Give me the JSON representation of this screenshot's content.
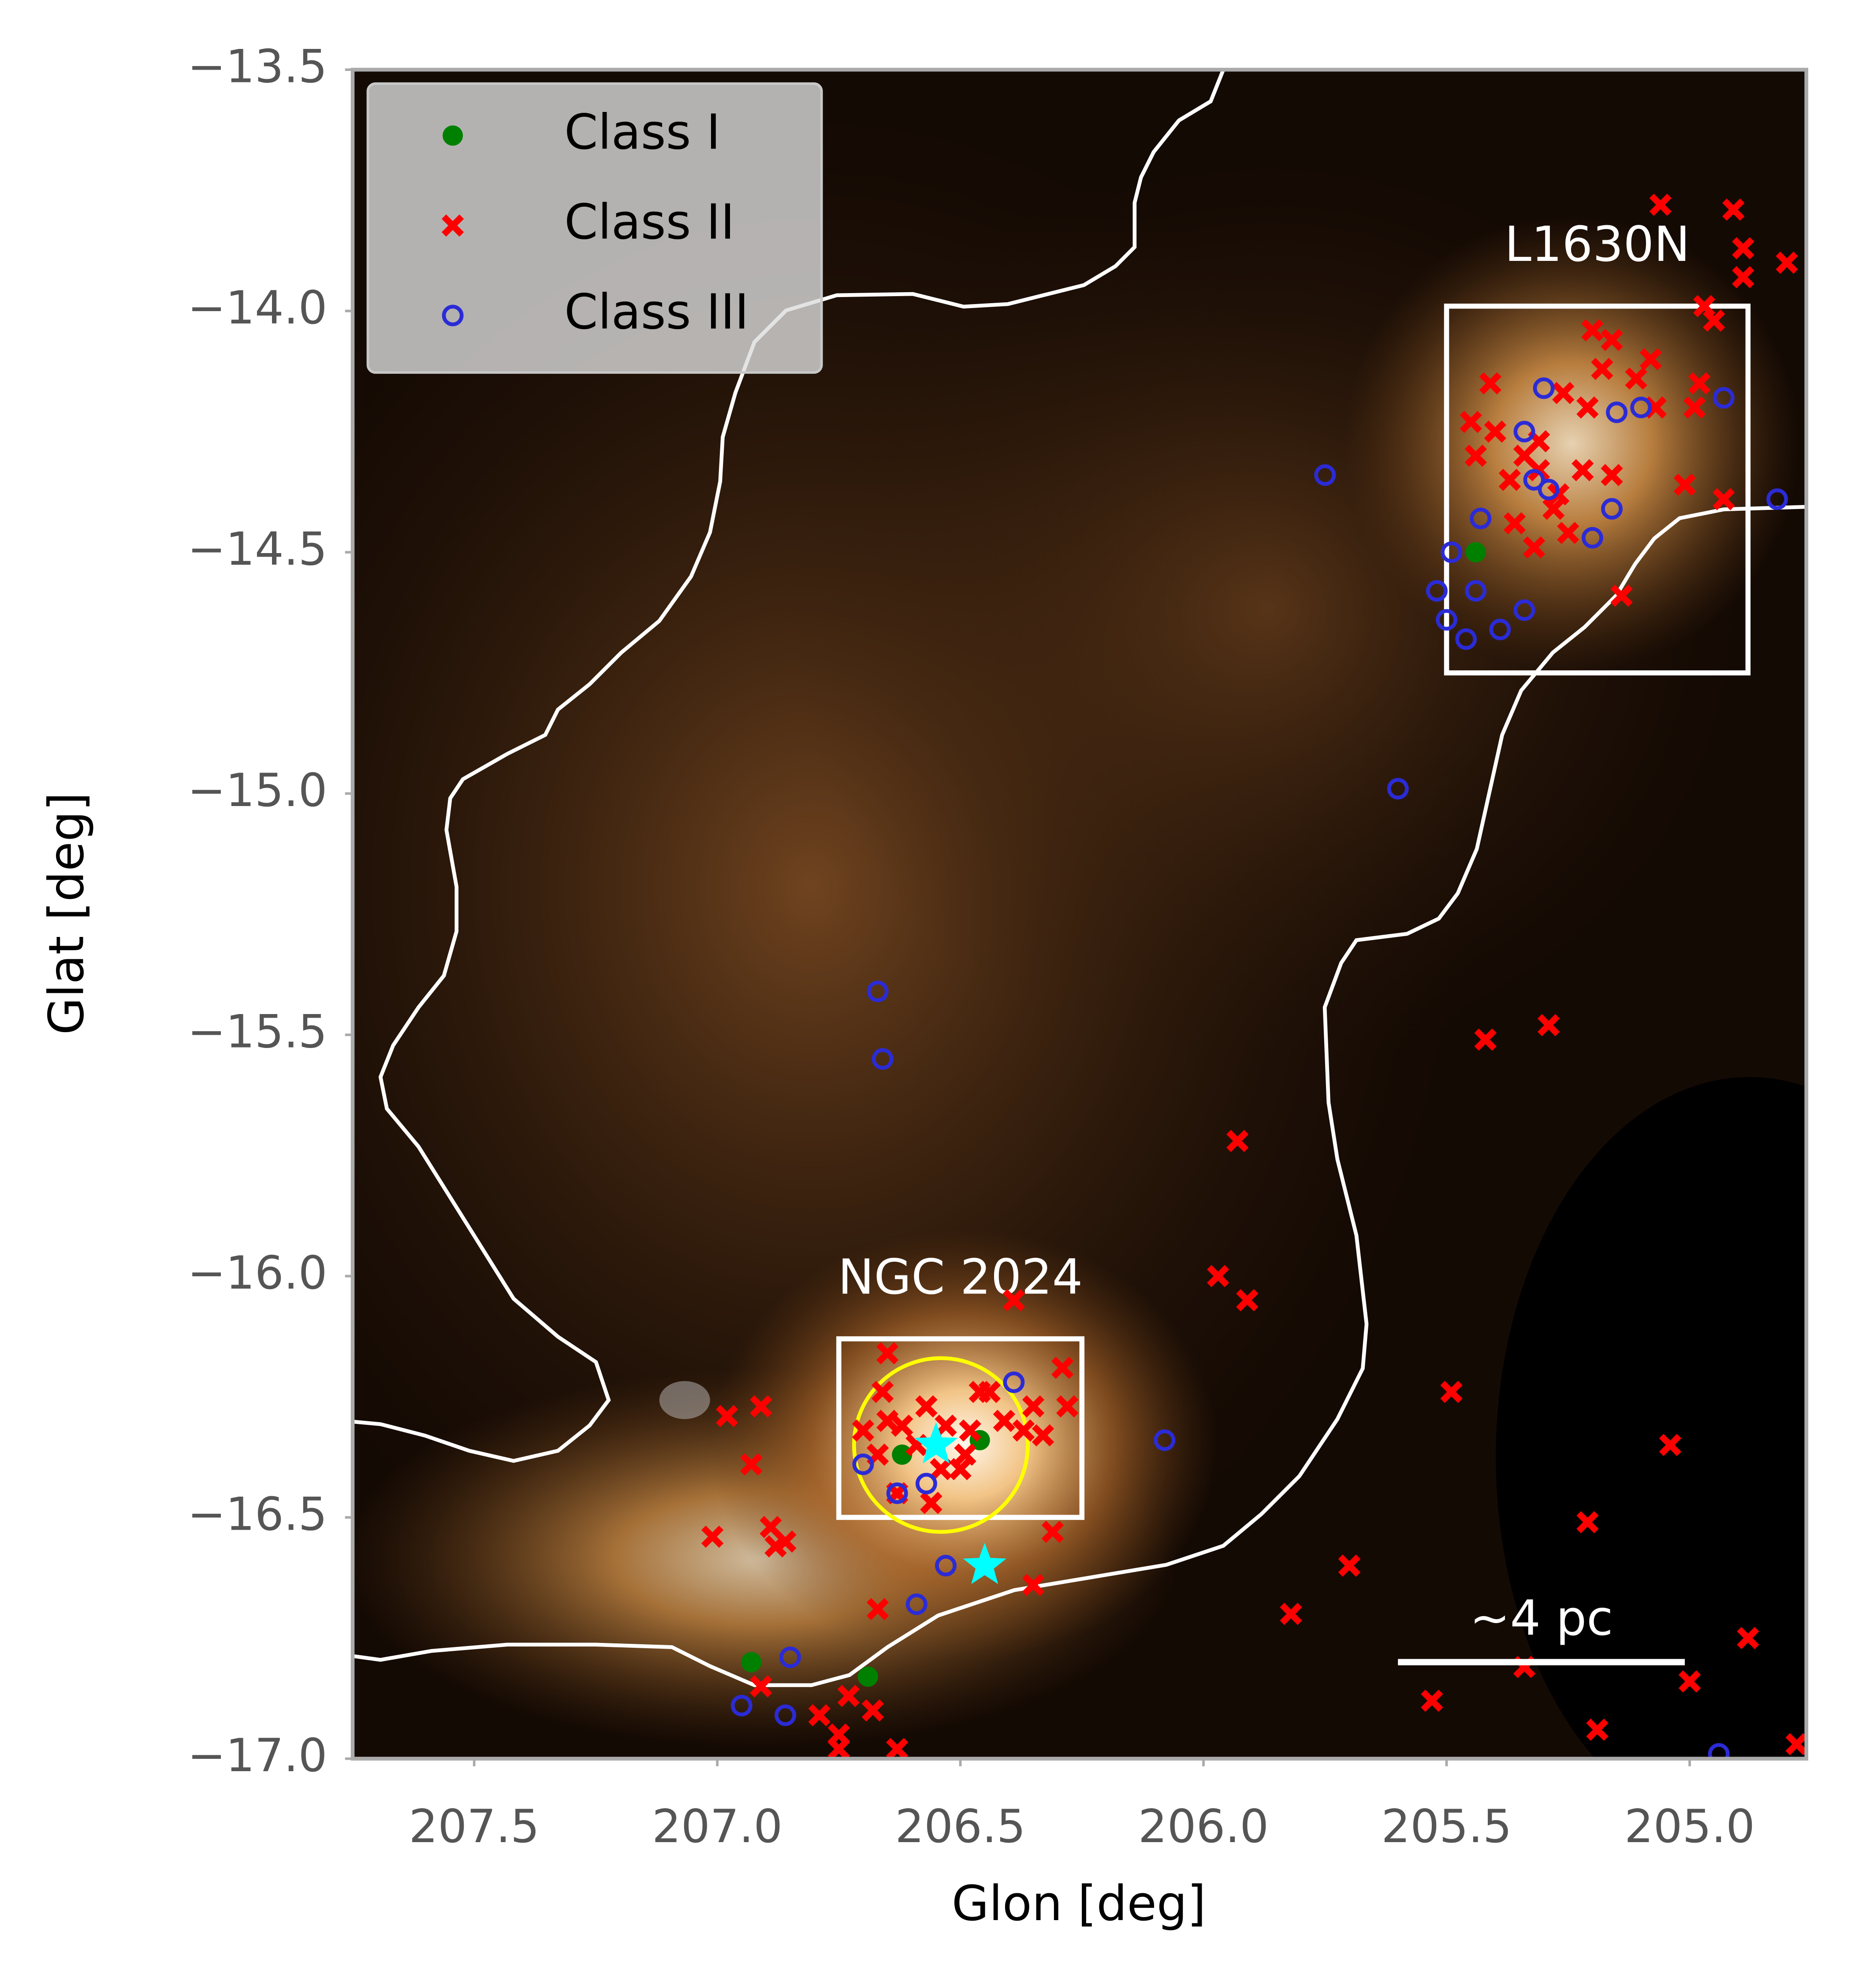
{
  "chart_data": {
    "type": "scatter",
    "x_label": "Glon [deg]",
    "y_label": "Glat [deg]",
    "xlim": [
      207.75,
      204.76
    ],
    "ylim": [
      -17.0,
      -13.5
    ],
    "xticks": [
      207.5,
      {
        "value": 207,
        "label": "207.0"
      },
      206.5,
      {
        "value": 206,
        "label": "206.0"
      },
      205.5,
      {
        "value": 205,
        "label": "205.0"
      }
    ],
    "yticks": [
      {
        "value": -13.5,
        "label": "−13.5"
      },
      {
        "value": -14,
        "label": "−14.0"
      },
      {
        "value": -14.5,
        "label": "−14.5"
      },
      {
        "value": -15,
        "label": "−15.0"
      },
      {
        "value": -15.5,
        "label": "−15.5"
      },
      {
        "value": -16,
        "label": "−16.0"
      },
      {
        "value": -16.5,
        "label": "−16.5"
      },
      {
        "value": -17,
        "label": "−17.0"
      }
    ],
    "grid": false,
    "legend": "upper left",
    "series": [
      {
        "name": "Class I",
        "color": "green",
        "marker": "dot",
        "x": [
          206.93,
          206.46,
          206.69,
          206.62,
          205.44
        ],
        "y": [
          -16.8,
          -16.34,
          -16.83,
          -16.37,
          -14.5
        ]
      },
      {
        "name": "Class II",
        "color": "red",
        "marker": "x",
        "x": [
          206.65,
          206.57,
          206.65,
          206.7,
          206.67,
          206.59,
          206.54,
          206.49,
          206.46,
          206.44,
          206.41,
          206.37,
          206.35,
          206.33,
          206.29,
          206.28,
          206.48,
          206.5,
          206.63,
          206.56,
          206.66,
          206.62,
          206.53,
          206.39,
          206.35,
          206.31,
          206.98,
          206.91,
          206.93,
          207.01,
          206.89,
          206.88,
          206.86,
          206.91,
          206.79,
          206.75,
          206.73,
          206.68,
          206.63,
          206.75,
          206.67,
          205.97,
          205.91,
          205.93,
          205.49,
          205.42,
          205.29,
          205.7,
          205.82,
          205.53,
          205.34,
          205.21,
          205.04,
          205.19,
          205.0,
          204.88,
          204.78,
          205.06,
          204.91,
          204.89,
          204.89,
          204.8,
          204.97,
          204.95,
          205.2,
          205.16,
          205.18,
          205.08,
          205.11,
          205.21,
          205.26,
          205.41,
          205.45,
          205.44,
          205.4,
          205.34,
          205.31,
          205.37,
          205.31,
          205.27,
          205.22,
          205.16,
          205.36,
          205.32,
          204.98,
          205.07,
          204.99,
          204.93,
          205.01,
          205.14,
          205.25,
          205.28
        ],
        "y": [
          -16.16,
          -16.27,
          -16.3,
          -16.32,
          -16.37,
          -16.35,
          -16.4,
          -16.37,
          -16.24,
          -16.24,
          -16.3,
          -16.32,
          -16.27,
          -16.33,
          -16.19,
          -16.27,
          -16.32,
          -16.4,
          -16.45,
          -16.47,
          -16.24,
          -16.31,
          -16.31,
          -16.05,
          -16.64,
          -16.53,
          -16.29,
          -16.27,
          -16.39,
          -16.54,
          -16.52,
          -16.56,
          -16.55,
          -16.85,
          -16.91,
          -16.95,
          -16.87,
          -16.9,
          -16.98,
          -16.98,
          -16.69,
          -16.0,
          -16.05,
          -15.72,
          -16.24,
          -15.51,
          -15.48,
          -16.6,
          -16.7,
          -16.88,
          -16.81,
          -16.51,
          -16.35,
          -16.94,
          -16.84,
          -16.75,
          -16.97,
          -13.78,
          -13.79,
          -13.87,
          -13.93,
          -13.9,
          -13.99,
          -14.02,
          -14.04,
          -14.06,
          -14.12,
          -14.1,
          -14.14,
          -14.2,
          -14.17,
          -14.15,
          -14.23,
          -14.3,
          -14.25,
          -14.3,
          -14.27,
          -14.35,
          -14.33,
          -14.38,
          -14.33,
          -14.34,
          -14.44,
          -14.49,
          -14.15,
          -14.2,
          -14.2,
          -14.39,
          -14.36,
          -14.59,
          -14.46,
          -14.41
        ]
      },
      {
        "name": "Class III",
        "color": "#2b2bd6",
        "marker": "ring",
        "x": [
          205.75,
          205.6,
          206.67,
          206.66,
          206.08,
          206.53,
          206.59,
          206.85,
          206.95,
          206.86,
          206.63,
          206.57,
          206.7,
          206.39,
          205.34,
          205.3,
          205.15,
          205.1,
          204.93,
          205.32,
          205.29,
          205.43,
          205.16,
          205.2,
          205.49,
          205.52,
          205.44,
          205.34,
          205.39,
          205.5,
          205.46,
          204.82,
          204.94
        ],
        "y": [
          -14.34,
          -14.99,
          -15.41,
          -15.55,
          -16.34,
          -16.6,
          -16.68,
          -16.79,
          -16.89,
          -16.91,
          -16.45,
          -16.43,
          -16.39,
          -16.22,
          -14.25,
          -14.16,
          -14.21,
          -14.2,
          -14.18,
          -14.35,
          -14.37,
          -14.43,
          -14.41,
          -14.47,
          -14.5,
          -14.58,
          -14.58,
          -14.62,
          -14.66,
          -14.64,
          -14.68,
          -14.39,
          -16.99
        ]
      }
    ],
    "stars": {
      "color": "cyan",
      "x": [
        206.55,
        206.45
      ],
      "y": [
        -16.35,
        -16.6
      ]
    },
    "regions": [
      {
        "label": "NGC 2024",
        "x": [
          206.75,
          206.25
        ],
        "y": [
          -16.13,
          -16.5
        ]
      },
      {
        "label": "L1630N",
        "x": [
          205.5,
          204.88
        ],
        "y": [
          -13.99,
          -14.75
        ]
      }
    ],
    "circle": {
      "color": "yellow",
      "x": 206.54,
      "y": -16.35,
      "radius": 0.18
    },
    "scale_bar": {
      "label": "~4 pc",
      "x": [
        205.6,
        205.01
      ],
      "y": -16.8
    }
  }
}
